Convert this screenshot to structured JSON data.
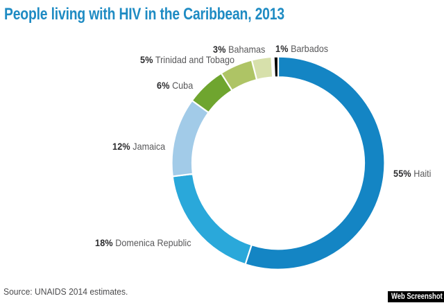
{
  "title": {
    "text": "People living with HIV in the Caribbean, 2013",
    "color": "#1e8bc3"
  },
  "source_note": "Source: UNAIDS 2014 estimates.",
  "badge": {
    "label": "Web Screenshot",
    "background": "#000000",
    "text_color": "#ffffff"
  },
  "chart_data": {
    "type": "pie",
    "subtype": "donut",
    "title": "People living with HIV in the Caribbean, 2013",
    "unit": "%",
    "start_angle_deg": 0,
    "direction": "clockwise",
    "legend_position": "labels-around-donut",
    "categories": [
      "Haiti",
      "Domenica Republic",
      "Jamaica",
      "Cuba",
      "Trinidad and Tobago",
      "Bahamas",
      "Barbados"
    ],
    "values": [
      55,
      18,
      12,
      6,
      5,
      3,
      1
    ],
    "slices": [
      {
        "id": "haiti",
        "label": "Haiti",
        "value": 55,
        "color": "#1485c4",
        "label_text": "55% Haiti"
      },
      {
        "id": "domenica",
        "label": "Domenica Republic",
        "value": 18,
        "color": "#2aa8da",
        "label_text": "18% Domenica Republic"
      },
      {
        "id": "jamaica",
        "label": "Jamaica",
        "value": 12,
        "color": "#a2cbe8",
        "label_text": "12% Jamaica"
      },
      {
        "id": "cuba",
        "label": "Cuba",
        "value": 6,
        "color": "#6fa52f",
        "label_text": "6% Cuba"
      },
      {
        "id": "trinidad",
        "label": "Trinidad and Tobago",
        "value": 5,
        "color": "#aec465",
        "label_text": "5% Trinidad and Tobago"
      },
      {
        "id": "bahamas",
        "label": "Bahamas",
        "value": 3,
        "color": "#d7e0ab",
        "label_text": "3% Bahamas"
      },
      {
        "id": "barbados",
        "label": "Barbados",
        "value": 1,
        "color": "#000000",
        "label_text": "1% Barbados"
      }
    ]
  }
}
